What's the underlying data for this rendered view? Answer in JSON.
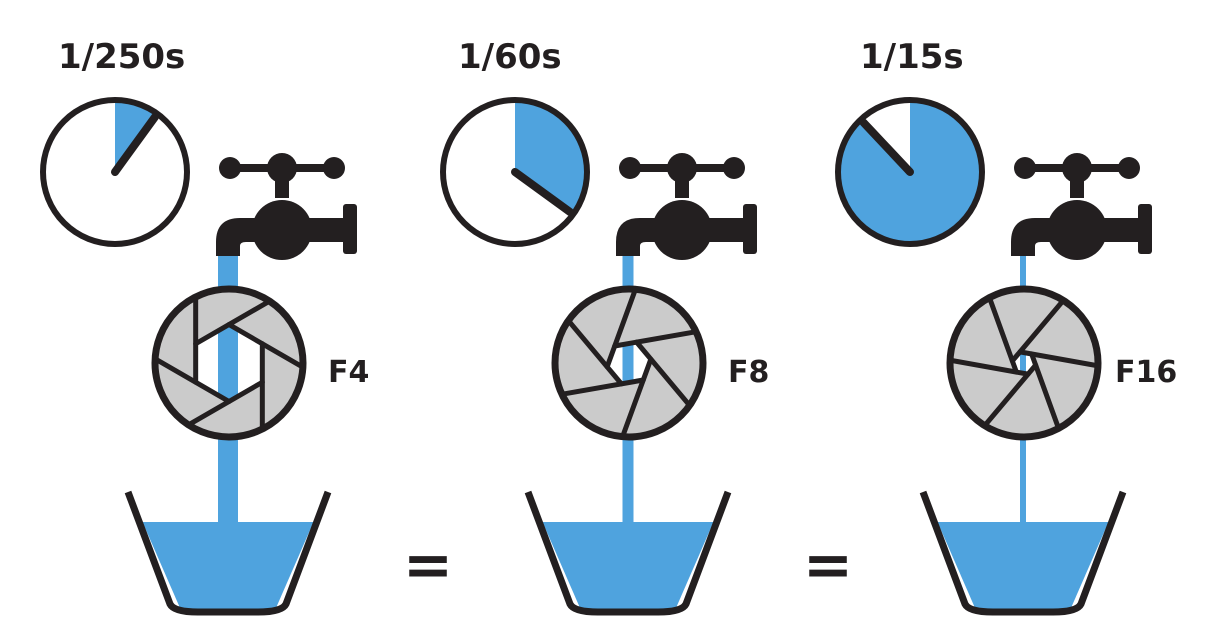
{
  "colors": {
    "water": "#4fa3de",
    "ink": "#231f20",
    "blade": "#cbcbcb",
    "background": "#ffffff"
  },
  "equals_sign": "=",
  "panels": [
    {
      "shutter_speed": "1/250s",
      "aperture": "F4",
      "timer_fraction": 0.1,
      "stream_width": 20,
      "aperture_radius": 0.52,
      "fill_level": 0.75
    },
    {
      "shutter_speed": "1/60s",
      "aperture": "F8",
      "timer_fraction": 0.35,
      "stream_width": 11,
      "aperture_radius": 0.3,
      "fill_level": 0.75
    },
    {
      "shutter_speed": "1/15s",
      "aperture": "F16",
      "timer_fraction": 0.88,
      "stream_width": 6,
      "aperture_radius": 0.16,
      "fill_level": 0.75
    }
  ]
}
